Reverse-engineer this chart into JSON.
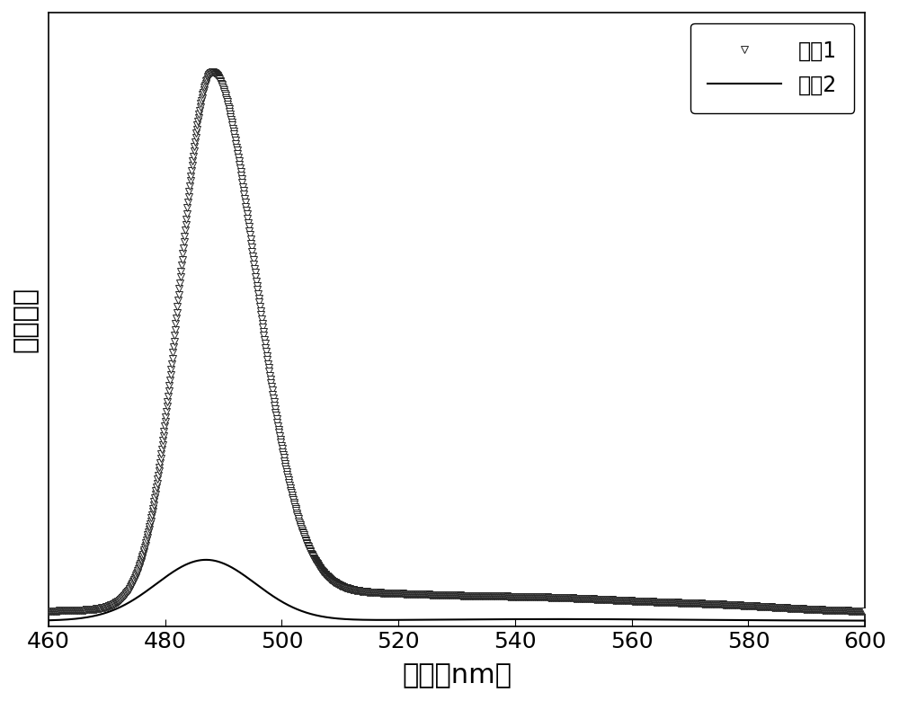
{
  "xlabel": "波长（nm）",
  "ylabel": "发光强度",
  "xlim": [
    460,
    600
  ],
  "x_ticks": [
    460,
    480,
    500,
    520,
    540,
    560,
    580,
    600
  ],
  "legend1": "曲线1",
  "legend2": "曲线2",
  "line1_color": "#000000",
  "line2_color": "#000000",
  "background_color": "#ffffff",
  "xlabel_fontsize": 22,
  "ylabel_fontsize": 22,
  "tick_fontsize": 18,
  "legend_fontsize": 17
}
